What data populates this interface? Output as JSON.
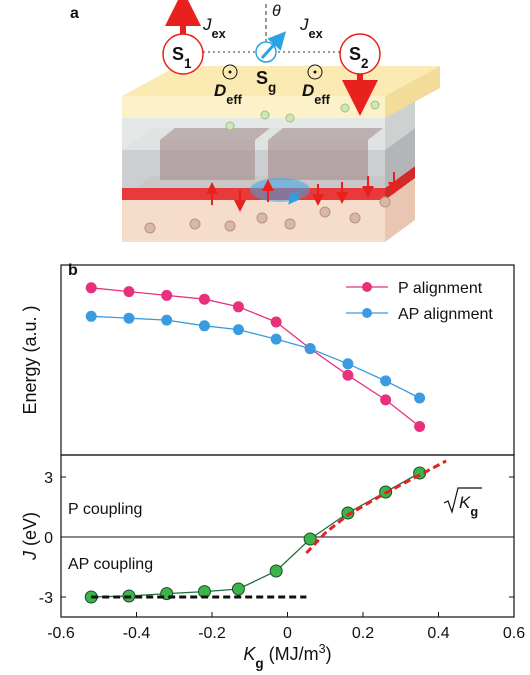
{
  "panel_labels": [
    "a",
    "b"
  ],
  "schematic": {
    "exchange": [
      "J",
      "ex"
    ],
    "angle": "θ",
    "spin_1": [
      "S",
      "1"
    ],
    "spin_g": [
      "S",
      "g"
    ],
    "spin_2": [
      "S",
      "2"
    ],
    "dmi": [
      "D",
      "eff"
    ]
  },
  "chart_data": [
    {
      "type": "line",
      "ylabel": "Energy (a.u. )",
      "x": [
        -0.52,
        -0.42,
        -0.32,
        -0.22,
        -0.13,
        -0.03,
        0.06,
        0.16,
        0.26,
        0.35
      ],
      "xlim": [
        -0.6,
        0.6
      ],
      "ylim": [
        0,
        1
      ],
      "legend": "upper right",
      "series": [
        {
          "name": "P alignment",
          "color": "#e8307c",
          "markers": true,
          "values": [
            0.88,
            0.86,
            0.84,
            0.82,
            0.78,
            0.7,
            0.56,
            0.42,
            0.29,
            0.15
          ]
        },
        {
          "name": "AP alignment",
          "color": "#3b9be0",
          "markers": true,
          "values": [
            0.73,
            0.72,
            0.71,
            0.68,
            0.66,
            0.61,
            0.56,
            0.48,
            0.39,
            0.3
          ]
        }
      ]
    },
    {
      "type": "line",
      "ylabel": [
        "J",
        " (eV)"
      ],
      "xlabel": [
        "K",
        "g",
        " (MJ/m",
        "3",
        ")"
      ],
      "x": [
        -0.52,
        -0.42,
        -0.32,
        -0.22,
        -0.13,
        -0.03,
        0.06,
        0.16,
        0.26,
        0.35
      ],
      "xlim": [
        -0.6,
        0.6
      ],
      "xticks": [
        -0.6,
        -0.4,
        -0.2,
        0,
        0.2,
        0.4,
        0.6
      ],
      "ylim": [
        -4,
        4.1
      ],
      "yticks": [
        -3,
        0,
        3
      ],
      "hline": 0,
      "annotations": [
        "P coupling",
        "AP coupling"
      ],
      "fit_label": [
        "K",
        "g"
      ],
      "series": [
        {
          "color": "#1f6e3e",
          "marker_color": "#3bb54a",
          "markers": true,
          "values": [
            -3.0,
            -2.95,
            -2.83,
            -2.73,
            -2.6,
            -1.7,
            -0.1,
            1.2,
            2.25,
            3.2
          ]
        },
        {
          "color": "#111111",
          "dashed": true,
          "x": [
            -0.52,
            0.05
          ],
          "values": [
            -3,
            -3
          ]
        },
        {
          "color": "#e8201e",
          "dashed": true,
          "x": [
            0.05,
            0.1,
            0.16,
            0.26,
            0.35,
            0.42
          ],
          "values": [
            -0.8,
            0.2,
            1.1,
            2.2,
            3.1,
            3.8
          ]
        }
      ]
    }
  ]
}
